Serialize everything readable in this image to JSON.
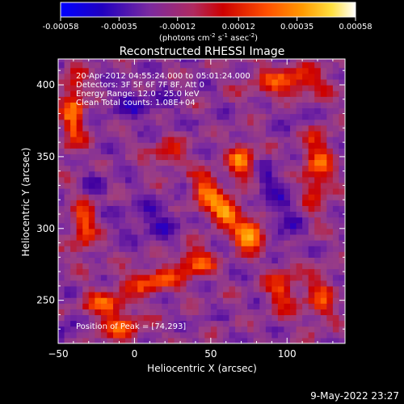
{
  "colorbar": {
    "ticks": [
      "-0.00058",
      "-0.00035",
      "-0.00012",
      "0.00012",
      "0.00035",
      "0.00058"
    ],
    "tick_values": [
      -0.00058,
      -0.00035,
      -0.00012,
      0.00012,
      0.00035,
      0.00058
    ],
    "range": [
      -0.00058,
      0.00058
    ],
    "units_main": "(photons cm",
    "units_sup1": "-2",
    "units_mid": " s",
    "units_sup2": "-1",
    "units_end": " asec",
    "units_sup3": "-2",
    "units_close": ")"
  },
  "chart_data": {
    "type": "heatmap",
    "title": "Reconstructed RHESSI Image",
    "xlabel": "Heliocentric X (arcsec)",
    "ylabel": "Heliocentric Y (arcsec)",
    "xlim": [
      -50,
      138
    ],
    "ylim": [
      220,
      418
    ],
    "x_ticks": [
      -50,
      0,
      50,
      100
    ],
    "y_ticks": [
      250,
      300,
      350,
      400
    ],
    "x_tick_labels": [
      "−50",
      "0",
      "50",
      "100"
    ],
    "y_tick_labels": [
      "250",
      "300",
      "350",
      "400"
    ],
    "colormap": "rhessi-purple-red-yellow",
    "colors": [
      "#0000ff",
      "#4000a0",
      "#7a2aa0",
      "#a04080",
      "#cc0000",
      "#ff5000",
      "#ff9a00",
      "#ffe040",
      "#ffffff"
    ],
    "annotations": [
      "20-Apr-2012 04:55:24.000 to 05:01:24.000",
      "Detectors: 3F 5F 6F 7F 8F, Att 0",
      "Energy Range: 12.0 - 25.0 keV",
      "Clean     Total counts: 1.08E+04"
    ],
    "peak_label": "Position of Peak = [74,293]",
    "peak": [
      74,
      293
    ]
  },
  "timestamp": "9-May-2022 23:27"
}
